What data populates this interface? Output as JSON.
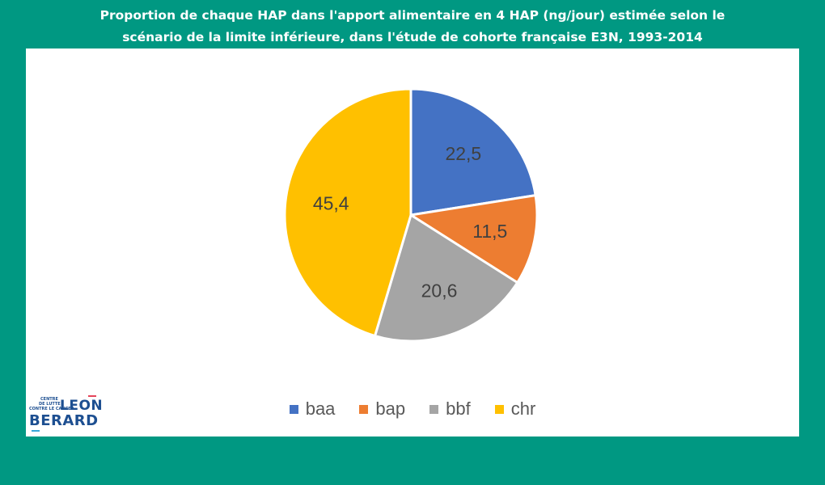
{
  "title": "Proportion de chaque HAP dans l'apport alimentaire en 4 HAP (ng/jour) estimée selon le scénario de la limite inférieure, dans l'étude de cohorte française E3N, 1993-2014",
  "title_lines": [
    "Proportion de chaque HAP dans l'apport alimentaire en 4 HAP (ng/jour) estimée selon le",
    "scénario de la limite inférieure, dans l'étude de cohorte française E3N, 1993-2014"
  ],
  "logo": {
    "small_lines": [
      "CENTRE",
      "DE LUTTE",
      "CONTRE LE CANCER"
    ],
    "name_top": "LEON",
    "name_bottom": "BERARD"
  },
  "chart_data": {
    "type": "pie",
    "title": "Proportion de chaque HAP dans l'apport alimentaire en 4 HAP (ng/jour) estimée selon le scénario de la limite inférieure, dans l'étude de cohorte française E3N, 1993-2014",
    "categories": [
      "baa",
      "bap",
      "bbf",
      "chr"
    ],
    "values": [
      22.5,
      11.5,
      20.6,
      45.4
    ],
    "labels": [
      "22,5",
      "11,5",
      "20,6",
      "45,4"
    ],
    "colors": [
      "#4472C4",
      "#ED7D31",
      "#A5A5A5",
      "#FFC000"
    ],
    "legend_position": "bottom"
  }
}
